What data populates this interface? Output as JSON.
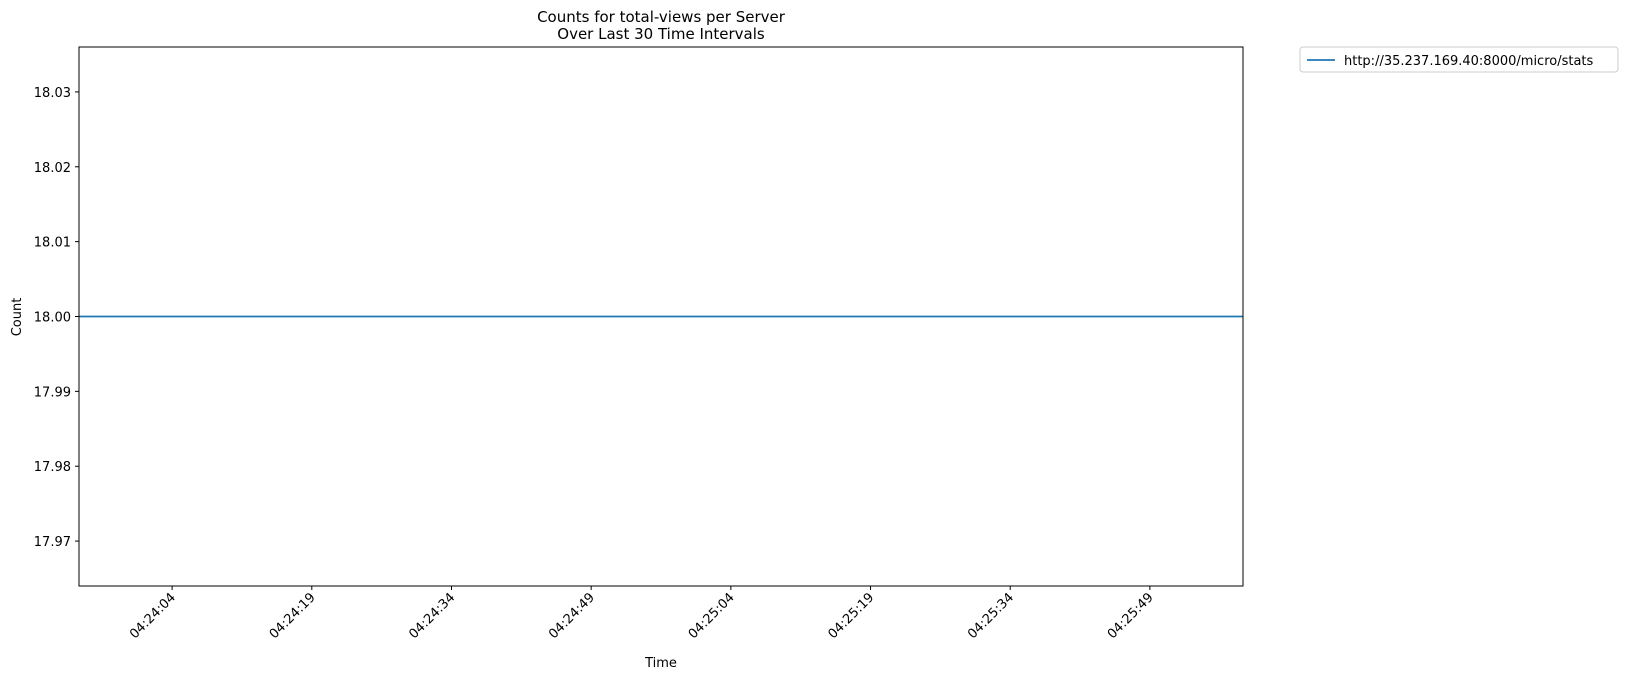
{
  "chart_data": {
    "type": "line",
    "title": "Counts for total-views per Server",
    "subtitle": "Over Last 30 Time Intervals",
    "xlabel": "Time",
    "ylabel": "Count",
    "x_ticks": [
      "04:24:04",
      "04:24:19",
      "04:24:34",
      "04:24:49",
      "04:25:04",
      "04:25:19",
      "04:25:34",
      "04:25:49"
    ],
    "y_ticks": [
      "17.97",
      "17.98",
      "17.99",
      "18.00",
      "18.01",
      "18.02",
      "18.03"
    ],
    "ylim": [
      17.964,
      18.036
    ],
    "xlim": [
      "04:23:54",
      "04:25:59"
    ],
    "grid": false,
    "legend_position": "outside-top-right",
    "series": [
      {
        "name": "http://35.237.169.40:8000/micro/stats",
        "color": "#1f77b4",
        "x": [
          "04:23:54",
          "04:25:59"
        ],
        "values": [
          18.0,
          18.0
        ]
      }
    ]
  }
}
